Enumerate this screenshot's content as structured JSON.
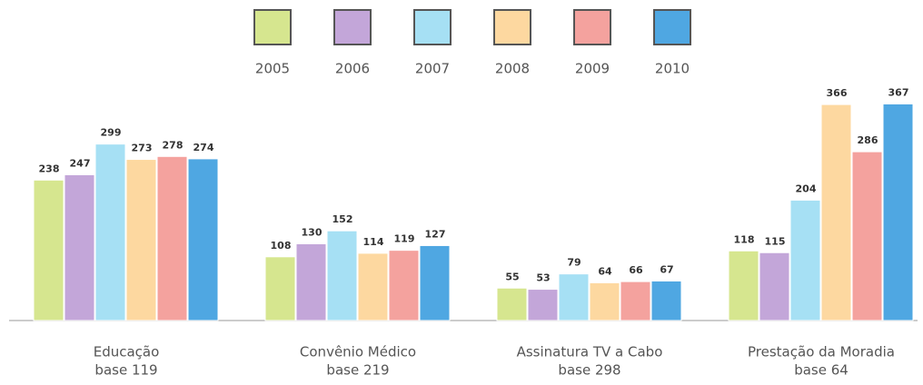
{
  "chart_data": {
    "type": "bar",
    "categories": [
      "Educação",
      "Convênio Médico",
      "Assinatura TV a Cabo",
      "Prestação da Moradia"
    ],
    "category_bases": [
      "base 119",
      "base 219",
      "base 298",
      "base 64"
    ],
    "series": [
      {
        "name": "2005",
        "color": "#d6e68f",
        "values": [
          238,
          108,
          55,
          118
        ]
      },
      {
        "name": "2006",
        "color": "#c3a6d9",
        "values": [
          247,
          130,
          53,
          115
        ]
      },
      {
        "name": "2007",
        "color": "#a6e0f4",
        "values": [
          299,
          152,
          79,
          204
        ]
      },
      {
        "name": "2008",
        "color": "#fdd8a0",
        "values": [
          273,
          114,
          64,
          366
        ]
      },
      {
        "name": "2009",
        "color": "#f4a29e",
        "values": [
          278,
          119,
          66,
          286
        ]
      },
      {
        "name": "2010",
        "color": "#4fa7e2",
        "values": [
          274,
          127,
          67,
          367
        ]
      }
    ],
    "ylim": [
      0,
      400
    ]
  }
}
